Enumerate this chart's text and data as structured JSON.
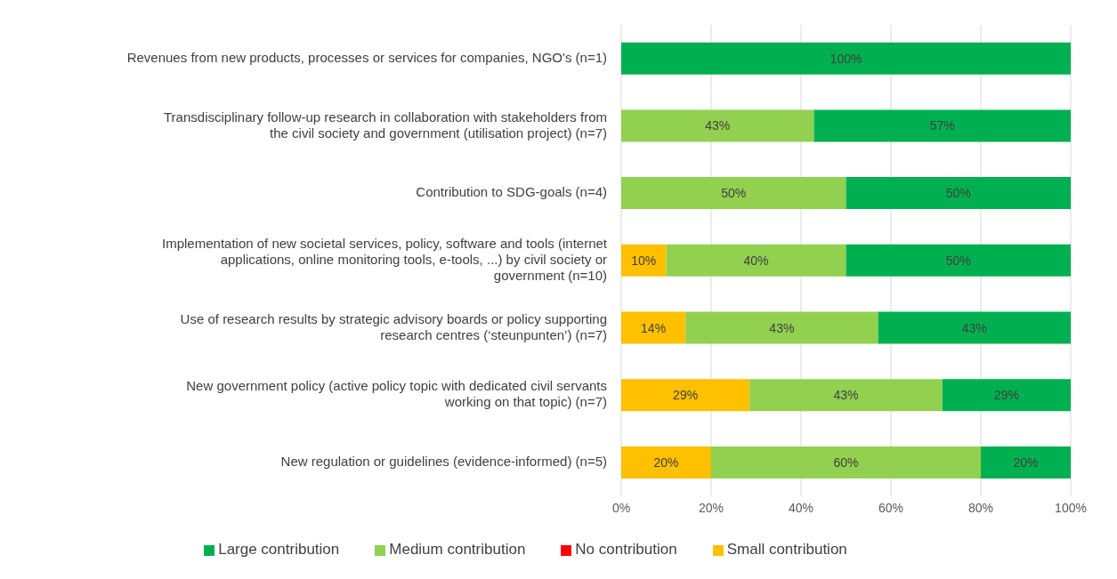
{
  "chart_data": {
    "type": "bar",
    "orientation": "horizontal",
    "stacked": true,
    "categories": [
      "Revenues from new products, processes or services for companies, NGO's (n=1)",
      "Transdisciplinary follow-up research in collaboration with stakeholders from the civil society and government (utilisation project) (n=7)",
      "Contribution to SDG-goals (n=4)",
      "Implementation of new societal services, policy, software and tools (internet applications, online monitoring tools, e-tools, ...) by civil society or government (n=10)",
      "Use of research results by strategic advisory boards or policy supporting research centres (‘steunpunten’) (n=7)",
      "New government policy (active policy topic with dedicated civil servants working on that topic) (n=7)",
      "New regulation or guidelines (evidence-informed) (n=5)"
    ],
    "series": [
      {
        "name": "No contribution",
        "color": "#ff0000",
        "values": [
          0,
          0,
          0,
          0,
          0,
          0,
          0
        ]
      },
      {
        "name": "Small contribution",
        "color": "#ffc000",
        "values": [
          0,
          0,
          0,
          10,
          14.29,
          28.57,
          20
        ],
        "value_labels": [
          null,
          null,
          null,
          "10%",
          "14%",
          "29%",
          "20%"
        ]
      },
      {
        "name": "Medium contribution",
        "color": "#92d050",
        "values": [
          0,
          42.86,
          50,
          40,
          42.86,
          42.86,
          60
        ],
        "value_labels": [
          null,
          "43%",
          "50%",
          "40%",
          "43%",
          "43%",
          "60%"
        ]
      },
      {
        "name": "Large contribution",
        "color": "#00b050",
        "values": [
          100,
          57.14,
          50,
          50,
          42.86,
          28.57,
          20
        ],
        "value_labels": [
          "100%",
          "57%",
          "50%",
          "50%",
          "43%",
          "29%",
          "20%"
        ]
      }
    ],
    "xlim": [
      0,
      100
    ],
    "xticks": [
      {
        "value": 0,
        "label": "0%"
      },
      {
        "value": 20,
        "label": "20%"
      },
      {
        "value": 40,
        "label": "40%"
      },
      {
        "value": 60,
        "label": "60%"
      },
      {
        "value": 80,
        "label": "80%"
      },
      {
        "value": 100,
        "label": "100%"
      }
    ],
    "grid": "x",
    "legend": "bottom"
  }
}
